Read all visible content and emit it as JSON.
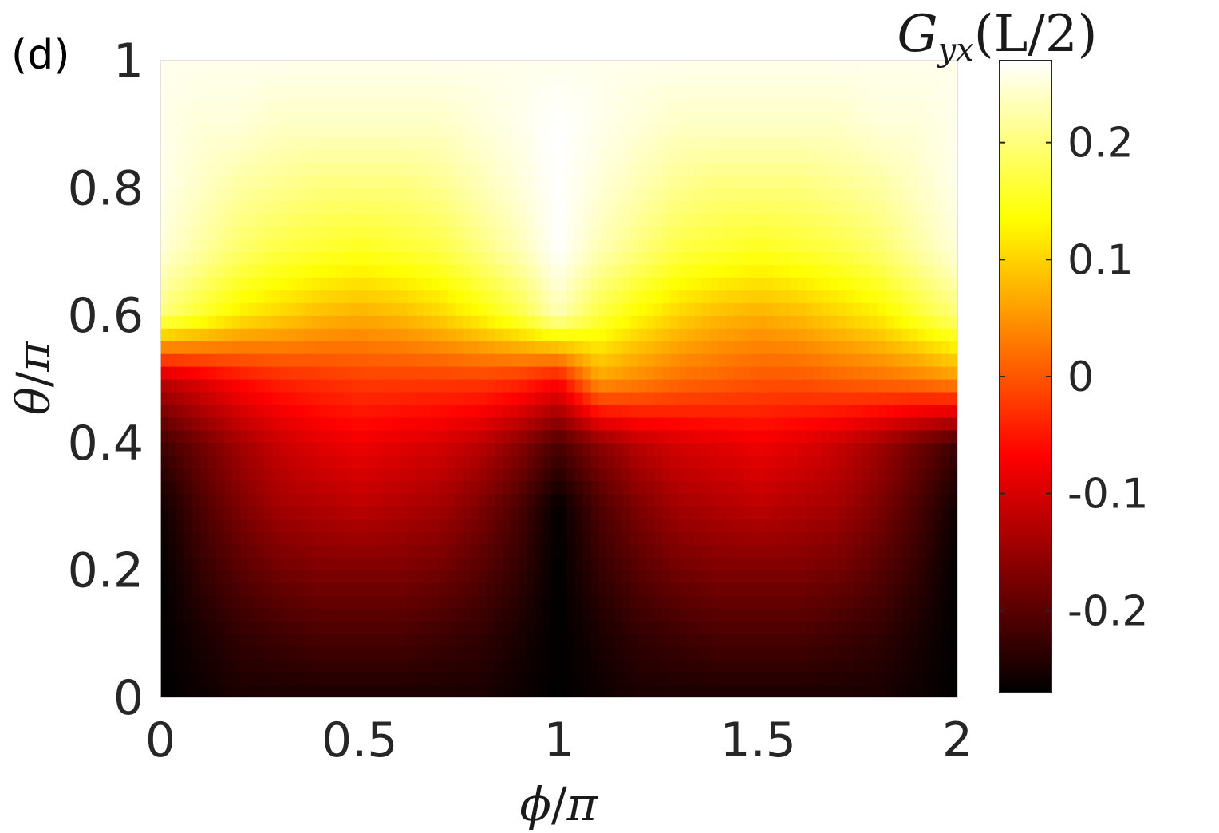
{
  "panel_label": "(d)",
  "chart_data": {
    "type": "heatmap",
    "title": "",
    "colorbar": {
      "label_base": "G",
      "label_subscript": "yx",
      "label_suffix": "(L/2)",
      "range": [
        -0.27,
        0.27
      ],
      "ticks": [
        0.2,
        0.1,
        0,
        -0.1,
        -0.2
      ],
      "tick_labels": [
        "0.2",
        "0.1",
        "0",
        "-0.1",
        "-0.2"
      ],
      "colormap": "hot"
    },
    "x_axis": {
      "label_num": "ϕ",
      "label_den": "π",
      "range": [
        0,
        2
      ],
      "ticks": [
        0,
        0.5,
        1,
        1.5,
        2
      ],
      "tick_labels": [
        "0",
        "0.5",
        "1",
        "1.5",
        "2"
      ]
    },
    "y_axis": {
      "label_num": "θ",
      "label_den": "π",
      "range": [
        0,
        1
      ],
      "ticks": [
        0,
        0.2,
        0.4,
        0.6,
        0.8,
        1
      ],
      "tick_labels": [
        "0",
        "0.2",
        "0.4",
        "0.6",
        "0.8",
        "1"
      ]
    },
    "grid": false,
    "x_samples": [
      0,
      0.1,
      0.2,
      0.3,
      0.4,
      0.5,
      0.6,
      0.7,
      0.8,
      0.9,
      1.0,
      1.1,
      1.2,
      1.3,
      1.4,
      1.5,
      1.6,
      1.7,
      1.8,
      1.9,
      2.0
    ],
    "y_samples": [
      0,
      0.1,
      0.2,
      0.3,
      0.4,
      0.5,
      0.6,
      0.7,
      0.8,
      0.9,
      1.0
    ],
    "z": [
      [
        -0.27,
        -0.26,
        -0.25,
        -0.25,
        -0.25,
        -0.25,
        -0.25,
        -0.25,
        -0.25,
        -0.26,
        -0.27,
        -0.26,
        -0.25,
        -0.25,
        -0.25,
        -0.25,
        -0.25,
        -0.25,
        -0.25,
        -0.26,
        -0.27
      ],
      [
        -0.27,
        -0.25,
        -0.23,
        -0.22,
        -0.21,
        -0.21,
        -0.21,
        -0.22,
        -0.23,
        -0.25,
        -0.27,
        -0.25,
        -0.23,
        -0.22,
        -0.21,
        -0.21,
        -0.21,
        -0.22,
        -0.23,
        -0.25,
        -0.27
      ],
      [
        -0.27,
        -0.23,
        -0.2,
        -0.18,
        -0.17,
        -0.17,
        -0.17,
        -0.18,
        -0.2,
        -0.23,
        -0.27,
        -0.23,
        -0.2,
        -0.18,
        -0.17,
        -0.17,
        -0.17,
        -0.18,
        -0.2,
        -0.23,
        -0.27
      ],
      [
        -0.26,
        -0.21,
        -0.17,
        -0.14,
        -0.13,
        -0.12,
        -0.13,
        -0.14,
        -0.17,
        -0.21,
        -0.27,
        -0.21,
        -0.17,
        -0.14,
        -0.13,
        -0.12,
        -0.13,
        -0.14,
        -0.17,
        -0.21,
        -0.26
      ],
      [
        -0.22,
        -0.18,
        -0.14,
        -0.11,
        -0.09,
        -0.08,
        -0.09,
        -0.1,
        -0.12,
        -0.16,
        -0.21,
        -0.16,
        -0.12,
        -0.1,
        -0.09,
        -0.08,
        -0.09,
        -0.11,
        -0.14,
        -0.18,
        -0.22
      ],
      [
        -0.12,
        -0.09,
        -0.06,
        -0.04,
        -0.03,
        -0.02,
        -0.02,
        -0.02,
        -0.02,
        -0.03,
        -0.06,
        0.06,
        0.04,
        0.02,
        0.01,
        0.0,
        0.0,
        0.01,
        0.02,
        0.03,
        0.05
      ],
      [
        0.2,
        0.16,
        0.12,
        0.1,
        0.08,
        0.07,
        0.08,
        0.1,
        0.13,
        0.17,
        0.23,
        0.17,
        0.13,
        0.1,
        0.08,
        0.07,
        0.08,
        0.1,
        0.12,
        0.16,
        0.2
      ],
      [
        0.25,
        0.22,
        0.19,
        0.17,
        0.16,
        0.15,
        0.16,
        0.17,
        0.2,
        0.23,
        0.27,
        0.23,
        0.2,
        0.17,
        0.16,
        0.15,
        0.16,
        0.17,
        0.19,
        0.22,
        0.25
      ],
      [
        0.26,
        0.24,
        0.22,
        0.21,
        0.2,
        0.2,
        0.2,
        0.21,
        0.23,
        0.25,
        0.27,
        0.25,
        0.23,
        0.21,
        0.2,
        0.2,
        0.2,
        0.21,
        0.22,
        0.24,
        0.26
      ],
      [
        0.26,
        0.25,
        0.25,
        0.24,
        0.24,
        0.24,
        0.24,
        0.24,
        0.25,
        0.26,
        0.27,
        0.26,
        0.25,
        0.24,
        0.24,
        0.24,
        0.24,
        0.24,
        0.25,
        0.25,
        0.26
      ],
      [
        0.26,
        0.26,
        0.26,
        0.26,
        0.26,
        0.26,
        0.26,
        0.26,
        0.26,
        0.26,
        0.26,
        0.26,
        0.26,
        0.26,
        0.26,
        0.26,
        0.26,
        0.26,
        0.26,
        0.26,
        0.26
      ]
    ]
  }
}
